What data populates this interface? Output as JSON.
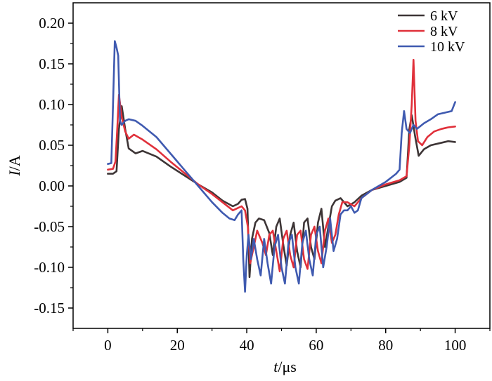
{
  "chart_data": {
    "type": "line",
    "title": "",
    "xlabel_italic": "t",
    "xlabel_unit": "/μs",
    "ylabel_italic": "I",
    "ylabel_unit": "/A",
    "xlim": [
      -10,
      110
    ],
    "ylim": [
      -0.175,
      0.225
    ],
    "x_ticks": [
      0,
      20,
      40,
      60,
      80,
      100
    ],
    "x_tick_labels": [
      "0",
      "20",
      "40",
      "60",
      "80",
      "100"
    ],
    "y_ticks": [
      0.2,
      0.15,
      0.1,
      0.05,
      0.0,
      -0.05,
      -0.1,
      -0.15
    ],
    "y_tick_labels": [
      "0.20",
      "0.15",
      "0.10",
      "0.05",
      "0.00",
      "-0.05",
      "-0.10",
      "-0.15"
    ],
    "grid": false,
    "legend_position": "top-right",
    "series": [
      {
        "name": "6 kV",
        "color": "#3d3536",
        "x": [
          0,
          1.5,
          2.5,
          3.2,
          4,
          5,
          6,
          8,
          10,
          14,
          18,
          22,
          26,
          30,
          33,
          36,
          37.5,
          38.5,
          39.5,
          40.2,
          40.8,
          41.5,
          42.5,
          43.5,
          45,
          46.5,
          47.5,
          48.5,
          49.5,
          50.5,
          51.5,
          52.5,
          53.5,
          54.5,
          55.5,
          56.5,
          57.5,
          58.5,
          59.5,
          60.5,
          61.5,
          62.5,
          63.5,
          64.5,
          65.5,
          67,
          69,
          71,
          73,
          76,
          80,
          84,
          86,
          86.8,
          87.5,
          88.5,
          89.5,
          91,
          93,
          95,
          98,
          100
        ],
        "y": [
          0.015,
          0.015,
          0.018,
          0.07,
          0.098,
          0.07,
          0.046,
          0.04,
          0.043,
          0.036,
          0.024,
          0.013,
          0.002,
          -0.008,
          -0.018,
          -0.025,
          -0.022,
          -0.017,
          -0.016,
          -0.028,
          -0.112,
          -0.065,
          -0.045,
          -0.04,
          -0.042,
          -0.058,
          -0.085,
          -0.05,
          -0.04,
          -0.072,
          -0.098,
          -0.06,
          -0.045,
          -0.08,
          -0.1,
          -0.045,
          -0.04,
          -0.075,
          -0.09,
          -0.045,
          -0.028,
          -0.075,
          -0.05,
          -0.025,
          -0.018,
          -0.015,
          -0.025,
          -0.02,
          -0.012,
          -0.005,
          0.0,
          0.005,
          0.01,
          0.07,
          0.087,
          0.06,
          0.037,
          0.045,
          0.05,
          0.052,
          0.055,
          0.054
        ]
      },
      {
        "name": "8 kV",
        "color": "#e0303a",
        "x": [
          0,
          1.5,
          2.2,
          2.8,
          3.2,
          4,
          5,
          6,
          7.5,
          10,
          14,
          18,
          22,
          26,
          30,
          33,
          36,
          37.5,
          38.5,
          39.5,
          40.3,
          41,
          42,
          43,
          44.5,
          45.5,
          46.5,
          47.5,
          48.5,
          49.5,
          50.5,
          51.5,
          52.5,
          53.5,
          54.5,
          55.5,
          56.5,
          57.5,
          58.5,
          59.5,
          60.5,
          61.5,
          62.5,
          63.5,
          64.5,
          65.5,
          66.5,
          67.5,
          69,
          71,
          73,
          76,
          80,
          84,
          86,
          86.8,
          87.5,
          88,
          88.6,
          89.3,
          90.5,
          92,
          94,
          96,
          98,
          100
        ],
        "y": [
          0.02,
          0.021,
          0.03,
          0.078,
          0.112,
          0.085,
          0.067,
          0.058,
          0.063,
          0.057,
          0.045,
          0.03,
          0.016,
          0.002,
          -0.01,
          -0.02,
          -0.03,
          -0.027,
          -0.025,
          -0.03,
          -0.05,
          -0.095,
          -0.075,
          -0.055,
          -0.07,
          -0.085,
          -0.06,
          -0.055,
          -0.08,
          -0.105,
          -0.065,
          -0.055,
          -0.085,
          -0.1,
          -0.06,
          -0.055,
          -0.09,
          -0.102,
          -0.06,
          -0.05,
          -0.08,
          -0.095,
          -0.055,
          -0.04,
          -0.07,
          -0.06,
          -0.035,
          -0.02,
          -0.02,
          -0.025,
          -0.015,
          -0.005,
          0.002,
          0.007,
          0.012,
          0.05,
          0.1,
          0.155,
          0.08,
          0.055,
          0.05,
          0.06,
          0.067,
          0.07,
          0.072,
          0.073
        ]
      },
      {
        "name": "10 kV",
        "color": "#3f5ab0",
        "x": [
          0,
          1,
          1.5,
          2,
          2.5,
          3,
          3.5,
          4,
          5,
          6,
          8,
          10,
          14,
          18,
          22,
          26,
          30,
          33,
          35,
          36.5,
          37.5,
          38.5,
          39,
          39.5,
          40,
          40.5,
          41.2,
          42,
          43,
          44,
          45,
          46,
          47,
          48,
          49,
          50,
          51,
          52,
          53,
          54,
          55,
          56,
          57,
          58,
          59,
          60,
          61,
          62,
          63,
          64,
          65,
          66,
          67,
          68,
          69,
          70,
          71,
          72,
          73,
          76,
          80,
          83,
          84,
          84.6,
          85.3,
          86,
          87,
          88,
          89,
          91,
          93,
          95,
          97,
          99,
          100
        ],
        "y": [
          0.027,
          0.028,
          0.1,
          0.178,
          0.17,
          0.16,
          0.08,
          0.075,
          0.08,
          0.082,
          0.08,
          0.074,
          0.06,
          0.04,
          0.02,
          0.0,
          -0.02,
          -0.033,
          -0.04,
          -0.042,
          -0.035,
          -0.03,
          -0.09,
          -0.13,
          -0.085,
          -0.06,
          -0.09,
          -0.065,
          -0.09,
          -0.11,
          -0.065,
          -0.095,
          -0.12,
          -0.075,
          -0.06,
          -0.1,
          -0.12,
          -0.07,
          -0.06,
          -0.1,
          -0.12,
          -0.07,
          -0.055,
          -0.09,
          -0.11,
          -0.06,
          -0.05,
          -0.1,
          -0.075,
          -0.04,
          -0.08,
          -0.065,
          -0.035,
          -0.03,
          -0.03,
          -0.025,
          -0.033,
          -0.03,
          -0.015,
          -0.005,
          0.005,
          0.015,
          0.02,
          0.065,
          0.092,
          0.07,
          0.065,
          0.075,
          0.07,
          0.077,
          0.082,
          0.088,
          0.09,
          0.092,
          0.103
        ]
      }
    ]
  }
}
